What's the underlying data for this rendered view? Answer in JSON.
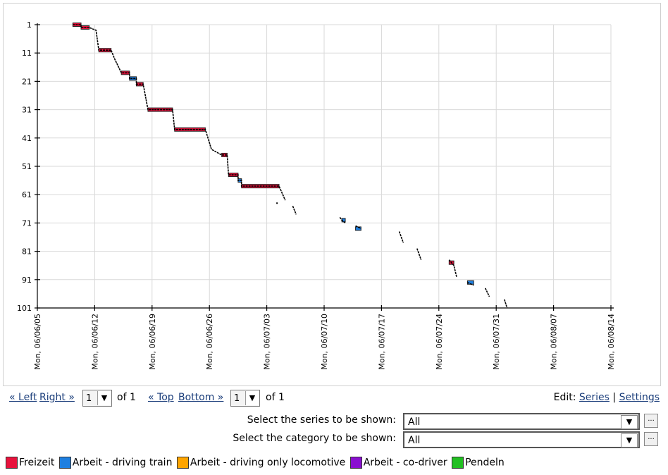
{
  "chart_data": {
    "type": "line",
    "title": "",
    "xlabel": "",
    "ylabel": "",
    "x_ticks": [
      "Mon, 06/06/05",
      "Mon, 06/06/12",
      "Mon, 06/06/19",
      "Mon, 06/06/26",
      "Mon, 06/07/03",
      "Mon, 06/07/10",
      "Mon, 06/07/17",
      "Mon, 06/07/24",
      "Mon, 06/07/31",
      "Mon, 06/08/07",
      "Mon, 06/08/14"
    ],
    "xlim": [
      "2006-06-05",
      "2006-08-14"
    ],
    "y_ticks": [
      1,
      11,
      21,
      31,
      41,
      51,
      61,
      71,
      81,
      91,
      101
    ],
    "ylim": [
      1,
      101
    ],
    "y_inverted": true,
    "grid": true,
    "legend_position": "bottom",
    "series": [
      {
        "name": "Freizeit",
        "color": "#e8123c",
        "intervals": [
          {
            "start": "2006-06-09 08:00",
            "end": "2006-06-10 08:00",
            "y": 1
          },
          {
            "start": "2006-06-10 08:00",
            "end": "2006-06-11 08:00",
            "y": 2
          },
          {
            "start": "2006-06-12 12:00",
            "end": "2006-06-14 00:00",
            "y": 10
          },
          {
            "start": "2006-06-15 06:00",
            "end": "2006-06-16 06:00",
            "y": 18
          },
          {
            "start": "2006-06-17 02:00",
            "end": "2006-06-17 22:00",
            "y": 22
          },
          {
            "start": "2006-06-18 12:00",
            "end": "2006-06-21 12:00",
            "y": 31
          },
          {
            "start": "2006-06-21 18:00",
            "end": "2006-06-25 12:00",
            "y": 38
          },
          {
            "start": "2006-06-27 12:00",
            "end": "2006-06-28 04:00",
            "y": 47
          },
          {
            "start": "2006-06-28 08:00",
            "end": "2006-06-29 12:00",
            "y": 54
          },
          {
            "start": "2006-06-29 22:00",
            "end": "2006-07-04 12:00",
            "y": 58
          },
          {
            "start": "2006-07-25 06:00",
            "end": "2006-07-25 20:00",
            "y": 85
          }
        ]
      },
      {
        "name": "Arbeit - driving train",
        "color": "#1e7fe0",
        "intervals": [
          {
            "start": "2006-06-16 06:00",
            "end": "2006-06-17 02:00",
            "y": 20
          },
          {
            "start": "2006-06-29 12:00",
            "end": "2006-06-29 22:00",
            "y": 56
          },
          {
            "start": "2006-07-12 04:00",
            "end": "2006-07-12 14:00",
            "y": 70
          },
          {
            "start": "2006-07-13 20:00",
            "end": "2006-07-14 12:00",
            "y": 73
          },
          {
            "start": "2006-07-27 12:00",
            "end": "2006-07-28 06:00",
            "y": 92
          }
        ]
      },
      {
        "name": "Arbeit - driving only locomotive",
        "color": "#ffa500",
        "intervals": []
      },
      {
        "name": "Arbeit - co-driver",
        "color": "#8a0fd0",
        "intervals": []
      },
      {
        "name": "Pendeln",
        "color": "#22c022",
        "intervals": []
      }
    ],
    "trace": [
      [
        "2006-06-09 08:00",
        1
      ],
      [
        "2006-06-10 08:00",
        1
      ],
      [
        "2006-06-10 08:00",
        2
      ],
      [
        "2006-06-11 08:00",
        2
      ],
      [
        "2006-06-12 04:00",
        3
      ],
      [
        "2006-06-12 12:00",
        10
      ],
      [
        "2006-06-14 00:00",
        10
      ],
      [
        "2006-06-14 10:00",
        13
      ],
      [
        "2006-06-15 06:00",
        18
      ],
      [
        "2006-06-16 06:00",
        18
      ],
      [
        "2006-06-16 06:00",
        20
      ],
      [
        "2006-06-17 02:00",
        20
      ],
      [
        "2006-06-17 02:00",
        22
      ],
      [
        "2006-06-17 22:00",
        22
      ],
      [
        "2006-06-18 12:00",
        31
      ],
      [
        "2006-06-21 12:00",
        31
      ],
      [
        "2006-06-21 18:00",
        38
      ],
      [
        "2006-06-25 12:00",
        38
      ],
      [
        "2006-06-26 06:00",
        45
      ],
      [
        "2006-06-27 12:00",
        47
      ],
      [
        "2006-06-28 04:00",
        47
      ],
      [
        "2006-06-28 08:00",
        54
      ],
      [
        "2006-06-29 12:00",
        54
      ],
      [
        "2006-06-29 12:00",
        56
      ],
      [
        "2006-06-29 22:00",
        56
      ],
      [
        "2006-06-29 22:00",
        58
      ],
      [
        "2006-07-04 12:00",
        58
      ],
      [
        "2006-07-05 06:00",
        63
      ],
      null,
      [
        "2006-07-06 04:00",
        65
      ],
      [
        "2006-07-06 14:00",
        68
      ],
      null,
      [
        "2006-07-11 22:00",
        69
      ],
      [
        "2006-07-12 04:00",
        70
      ],
      [
        "2006-07-12 14:00",
        71
      ],
      null,
      [
        "2006-07-13 20:00",
        72
      ],
      [
        "2006-07-14 12:00",
        73
      ],
      null,
      [
        "2006-07-19 04:00",
        74
      ],
      [
        "2006-07-19 16:00",
        78
      ],
      null,
      [
        "2006-07-21 08:00",
        80
      ],
      [
        "2006-07-21 20:00",
        84
      ],
      null,
      [
        "2006-07-25 06:00",
        84
      ],
      [
        "2006-07-25 20:00",
        86
      ],
      [
        "2006-07-26 04:00",
        90
      ],
      null,
      [
        "2006-07-27 12:00",
        92
      ],
      [
        "2006-07-28 06:00",
        93
      ],
      null,
      [
        "2006-07-29 16:00",
        94
      ],
      [
        "2006-07-30 04:00",
        97
      ],
      null,
      [
        "2006-08-01 00:00",
        98
      ],
      [
        "2006-08-01 08:00",
        101
      ]
    ],
    "points": [
      [
        "2006-07-04 06:00",
        64
      ]
    ]
  },
  "nav": {
    "left_label": "« Left",
    "right_label": "Right »",
    "page1_value": "1",
    "of1_text": "of 1",
    "top_label": "« Top",
    "bottom_label": "Bottom »",
    "page2_value": "1",
    "of2_text": "of 1",
    "edit_prefix": "Edit:",
    "series_link": "Series",
    "separator": "|",
    "settings_link": "Settings",
    "dropdown_arrow": "▼"
  },
  "selectors": {
    "series_label": "Select the series to be shown:",
    "series_value": "All",
    "category_label": "Select the category to be shown:",
    "category_value": "All",
    "ellipsis": "..."
  }
}
